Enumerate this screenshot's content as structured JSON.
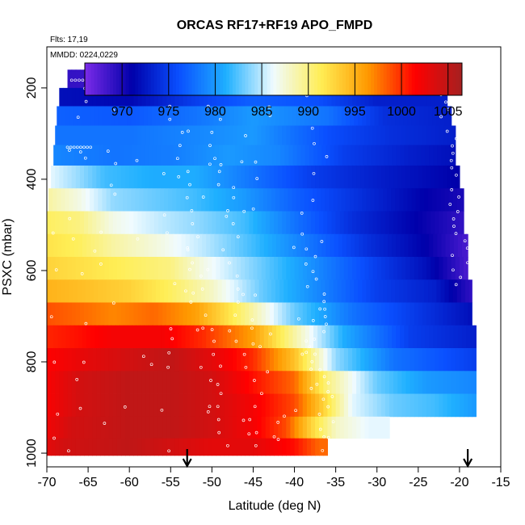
{
  "chart_data": {
    "type": "heatmap",
    "title": "ORCAS RF17+RF19 APO_FMPD",
    "flights_note": "Flts: 17,19",
    "date_note": "MMDD: 0224,0229",
    "xlabel": "Latitude (deg N)",
    "ylabel": "PSXC (mbar)",
    "xlim": [
      -70,
      -15
    ],
    "ylim": [
      1030,
      110
    ],
    "x_ticks": [
      -70,
      -65,
      -60,
      -55,
      -50,
      -45,
      -40,
      -35,
      -30,
      -25,
      -20,
      -15
    ],
    "y_ticks": [
      200,
      400,
      600,
      800,
      1000
    ],
    "colorbar": {
      "min": 966,
      "max": 1006.5,
      "ticks": [
        970,
        975,
        980,
        985,
        990,
        995,
        1000,
        1005
      ],
      "stops": [
        "#7b2be8",
        "#0000aa",
        "#0a50ff",
        "#1fb0ff",
        "#f0fbff",
        "#ffee55",
        "#ff9900",
        "#ff0000",
        "#a52020"
      ]
    },
    "pressure_levels": [
      180,
      220,
      260,
      305,
      345,
      395,
      445,
      495,
      545,
      595,
      645,
      695,
      745,
      795,
      845,
      895,
      945,
      990
    ],
    "rows": [
      {
        "p": 180,
        "x0": -67.5,
        "x1": -22,
        "segments": [
          [
            -67.5,
            969
          ],
          [
            -62,
            968.5
          ],
          [
            -55,
            968
          ],
          [
            -51,
            971
          ],
          [
            -45,
            972.5
          ],
          [
            -38,
            972
          ],
          [
            -32,
            971
          ],
          [
            -22,
            971
          ]
        ]
      },
      {
        "p": 220,
        "x0": -68.5,
        "x1": -21.5,
        "segments": [
          [
            -68.5,
            972
          ],
          [
            -60,
            971.5
          ],
          [
            -52,
            975
          ],
          [
            -45,
            977
          ],
          [
            -37,
            976
          ],
          [
            -30,
            973
          ],
          [
            -21.5,
            973
          ]
        ]
      },
      {
        "p": 260,
        "x0": -68.8,
        "x1": -21,
        "segments": [
          [
            -68.8,
            977
          ],
          [
            -60,
            976.5
          ],
          [
            -52,
            978
          ],
          [
            -45,
            980
          ],
          [
            -36,
            978
          ],
          [
            -29,
            974
          ],
          [
            -21,
            973
          ]
        ]
      },
      {
        "p": 305,
        "x0": -69,
        "x1": -20.5,
        "segments": [
          [
            -69,
            978
          ],
          [
            -60,
            978
          ],
          [
            -52,
            979
          ],
          [
            -45,
            980
          ],
          [
            -36,
            976
          ],
          [
            -28,
            974
          ],
          [
            -20.5,
            973
          ]
        ]
      },
      {
        "p": 345,
        "x0": -69.2,
        "x1": -20.5,
        "segments": [
          [
            -69.2,
            979
          ],
          [
            -62,
            978
          ],
          [
            -55,
            978.5
          ],
          [
            -48,
            980
          ],
          [
            -42,
            979
          ],
          [
            -34,
            975
          ],
          [
            -26,
            973
          ],
          [
            -20.5,
            972
          ]
        ]
      },
      {
        "p": 395,
        "x0": -69.5,
        "x1": -20,
        "segments": [
          [
            -69.5,
            986
          ],
          [
            -66,
            984
          ],
          [
            -63,
            982
          ],
          [
            -57,
            981
          ],
          [
            -52,
            981
          ],
          [
            -45,
            978
          ],
          [
            -38,
            975
          ],
          [
            -30,
            973
          ],
          [
            -20,
            971
          ]
        ]
      },
      {
        "p": 445,
        "x0": -69.8,
        "x1": -19.5,
        "segments": [
          [
            -69.8,
            989
          ],
          [
            -66,
            987
          ],
          [
            -62,
            984
          ],
          [
            -57,
            983
          ],
          [
            -52,
            982
          ],
          [
            -46,
            980
          ],
          [
            -40,
            977
          ],
          [
            -32,
            974
          ],
          [
            -24,
            971
          ],
          [
            -19.5,
            970
          ]
        ]
      },
      {
        "p": 495,
        "x0": -70,
        "x1": -19.5,
        "segments": [
          [
            -70,
            991
          ],
          [
            -66,
            990
          ],
          [
            -62,
            987
          ],
          [
            -56,
            985
          ],
          [
            -52,
            984
          ],
          [
            -46,
            982
          ],
          [
            -40,
            978
          ],
          [
            -33,
            974
          ],
          [
            -25,
            971
          ],
          [
            -19.5,
            969
          ]
        ]
      },
      {
        "p": 545,
        "x0": -70.2,
        "x1": -19,
        "segments": [
          [
            -70.2,
            992
          ],
          [
            -66,
            991
          ],
          [
            -62,
            989
          ],
          [
            -56,
            987
          ],
          [
            -51,
            985
          ],
          [
            -45,
            982
          ],
          [
            -38,
            978
          ],
          [
            -31,
            974
          ],
          [
            -24,
            971
          ],
          [
            -19,
            968
          ]
        ]
      },
      {
        "p": 595,
        "x0": -70.5,
        "x1": -19,
        "segments": [
          [
            -70.5,
            993
          ],
          [
            -65,
            992
          ],
          [
            -60,
            991
          ],
          [
            -55,
            990
          ],
          [
            -51,
            987
          ],
          [
            -44,
            983
          ],
          [
            -37,
            979
          ],
          [
            -30,
            975
          ],
          [
            -24,
            972
          ],
          [
            -19,
            968
          ]
        ]
      },
      {
        "p": 645,
        "x0": -70.8,
        "x1": -18.5,
        "segments": [
          [
            -70.8,
            995
          ],
          [
            -65,
            994
          ],
          [
            -60,
            993
          ],
          [
            -55,
            991
          ],
          [
            -50,
            988
          ],
          [
            -44,
            983
          ],
          [
            -37,
            979
          ],
          [
            -30,
            975
          ],
          [
            -23,
            973
          ],
          [
            -18.5,
            969
          ]
        ]
      },
      {
        "p": 695,
        "x0": -71,
        "x1": -18.5,
        "segments": [
          [
            -71,
            999
          ],
          [
            -66,
            998
          ],
          [
            -62,
            997
          ],
          [
            -57,
            998
          ],
          [
            -52,
            996
          ],
          [
            -46,
            990
          ],
          [
            -40,
            983
          ],
          [
            -33,
            978
          ],
          [
            -26,
            975
          ],
          [
            -18.5,
            972
          ]
        ]
      },
      {
        "p": 745,
        "x0": -71.2,
        "x1": -18,
        "segments": [
          [
            -71.2,
            1000
          ],
          [
            -66,
            1001
          ],
          [
            -62,
            1002
          ],
          [
            -56,
            1002
          ],
          [
            -51,
            1000
          ],
          [
            -45,
            996
          ],
          [
            -40,
            989
          ],
          [
            -34,
            981
          ],
          [
            -26,
            975
          ],
          [
            -18,
            973
          ]
        ]
      },
      {
        "p": 795,
        "x0": -71.5,
        "x1": -18,
        "segments": [
          [
            -71.5,
            1001
          ],
          [
            -65,
            1003
          ],
          [
            -60,
            1004
          ],
          [
            -55,
            1005
          ],
          [
            -50,
            1003
          ],
          [
            -45,
            1000
          ],
          [
            -40,
            994
          ],
          [
            -35,
            984
          ],
          [
            -28,
            978
          ],
          [
            -18,
            975
          ]
        ]
      },
      {
        "p": 845,
        "x0": -71.5,
        "x1": -18,
        "segments": [
          [
            -71.5,
            1001
          ],
          [
            -66,
            1004
          ],
          [
            -60,
            1005
          ],
          [
            -55,
            1005
          ],
          [
            -50,
            1004
          ],
          [
            -45,
            1001
          ],
          [
            -40,
            998
          ],
          [
            -36,
            990
          ],
          [
            -30,
            983
          ],
          [
            -24,
            980
          ],
          [
            -18,
            979
          ]
        ]
      },
      {
        "p": 895,
        "x0": -71.5,
        "x1": -18,
        "segments": [
          [
            -71.5,
            1001
          ],
          [
            -66,
            1004
          ],
          [
            -60,
            1005
          ],
          [
            -55,
            1005
          ],
          [
            -50,
            1004
          ],
          [
            -45,
            1002
          ],
          [
            -40,
            999
          ],
          [
            -37,
            994
          ],
          [
            -33,
            986
          ],
          [
            -28,
            983
          ],
          [
            -23,
            982
          ],
          [
            -18,
            980
          ]
        ]
      },
      {
        "p": 945,
        "x0": -72,
        "x1": -28.5,
        "segments": [
          [
            -72,
            1001
          ],
          [
            -67,
            1004
          ],
          [
            -60,
            1005
          ],
          [
            -55,
            1005
          ],
          [
            -50,
            1004
          ],
          [
            -45,
            1002
          ],
          [
            -41,
            999
          ],
          [
            -38,
            993
          ],
          [
            -35,
            988
          ],
          [
            -31,
            986
          ],
          [
            -28.5,
            986
          ]
        ]
      },
      {
        "p": 990,
        "x0": -72,
        "x1": -36,
        "segments": [
          [
            -72,
            1002
          ],
          [
            -68,
            1004
          ],
          [
            -60,
            1005
          ],
          [
            -55,
            1004
          ],
          [
            -50,
            1003
          ],
          [
            -45,
            1003
          ],
          [
            -40,
            1001
          ],
          [
            -37,
            998
          ],
          [
            -36,
            998
          ]
        ]
      }
    ],
    "arrows_lat": [
      -53,
      -19
    ]
  }
}
